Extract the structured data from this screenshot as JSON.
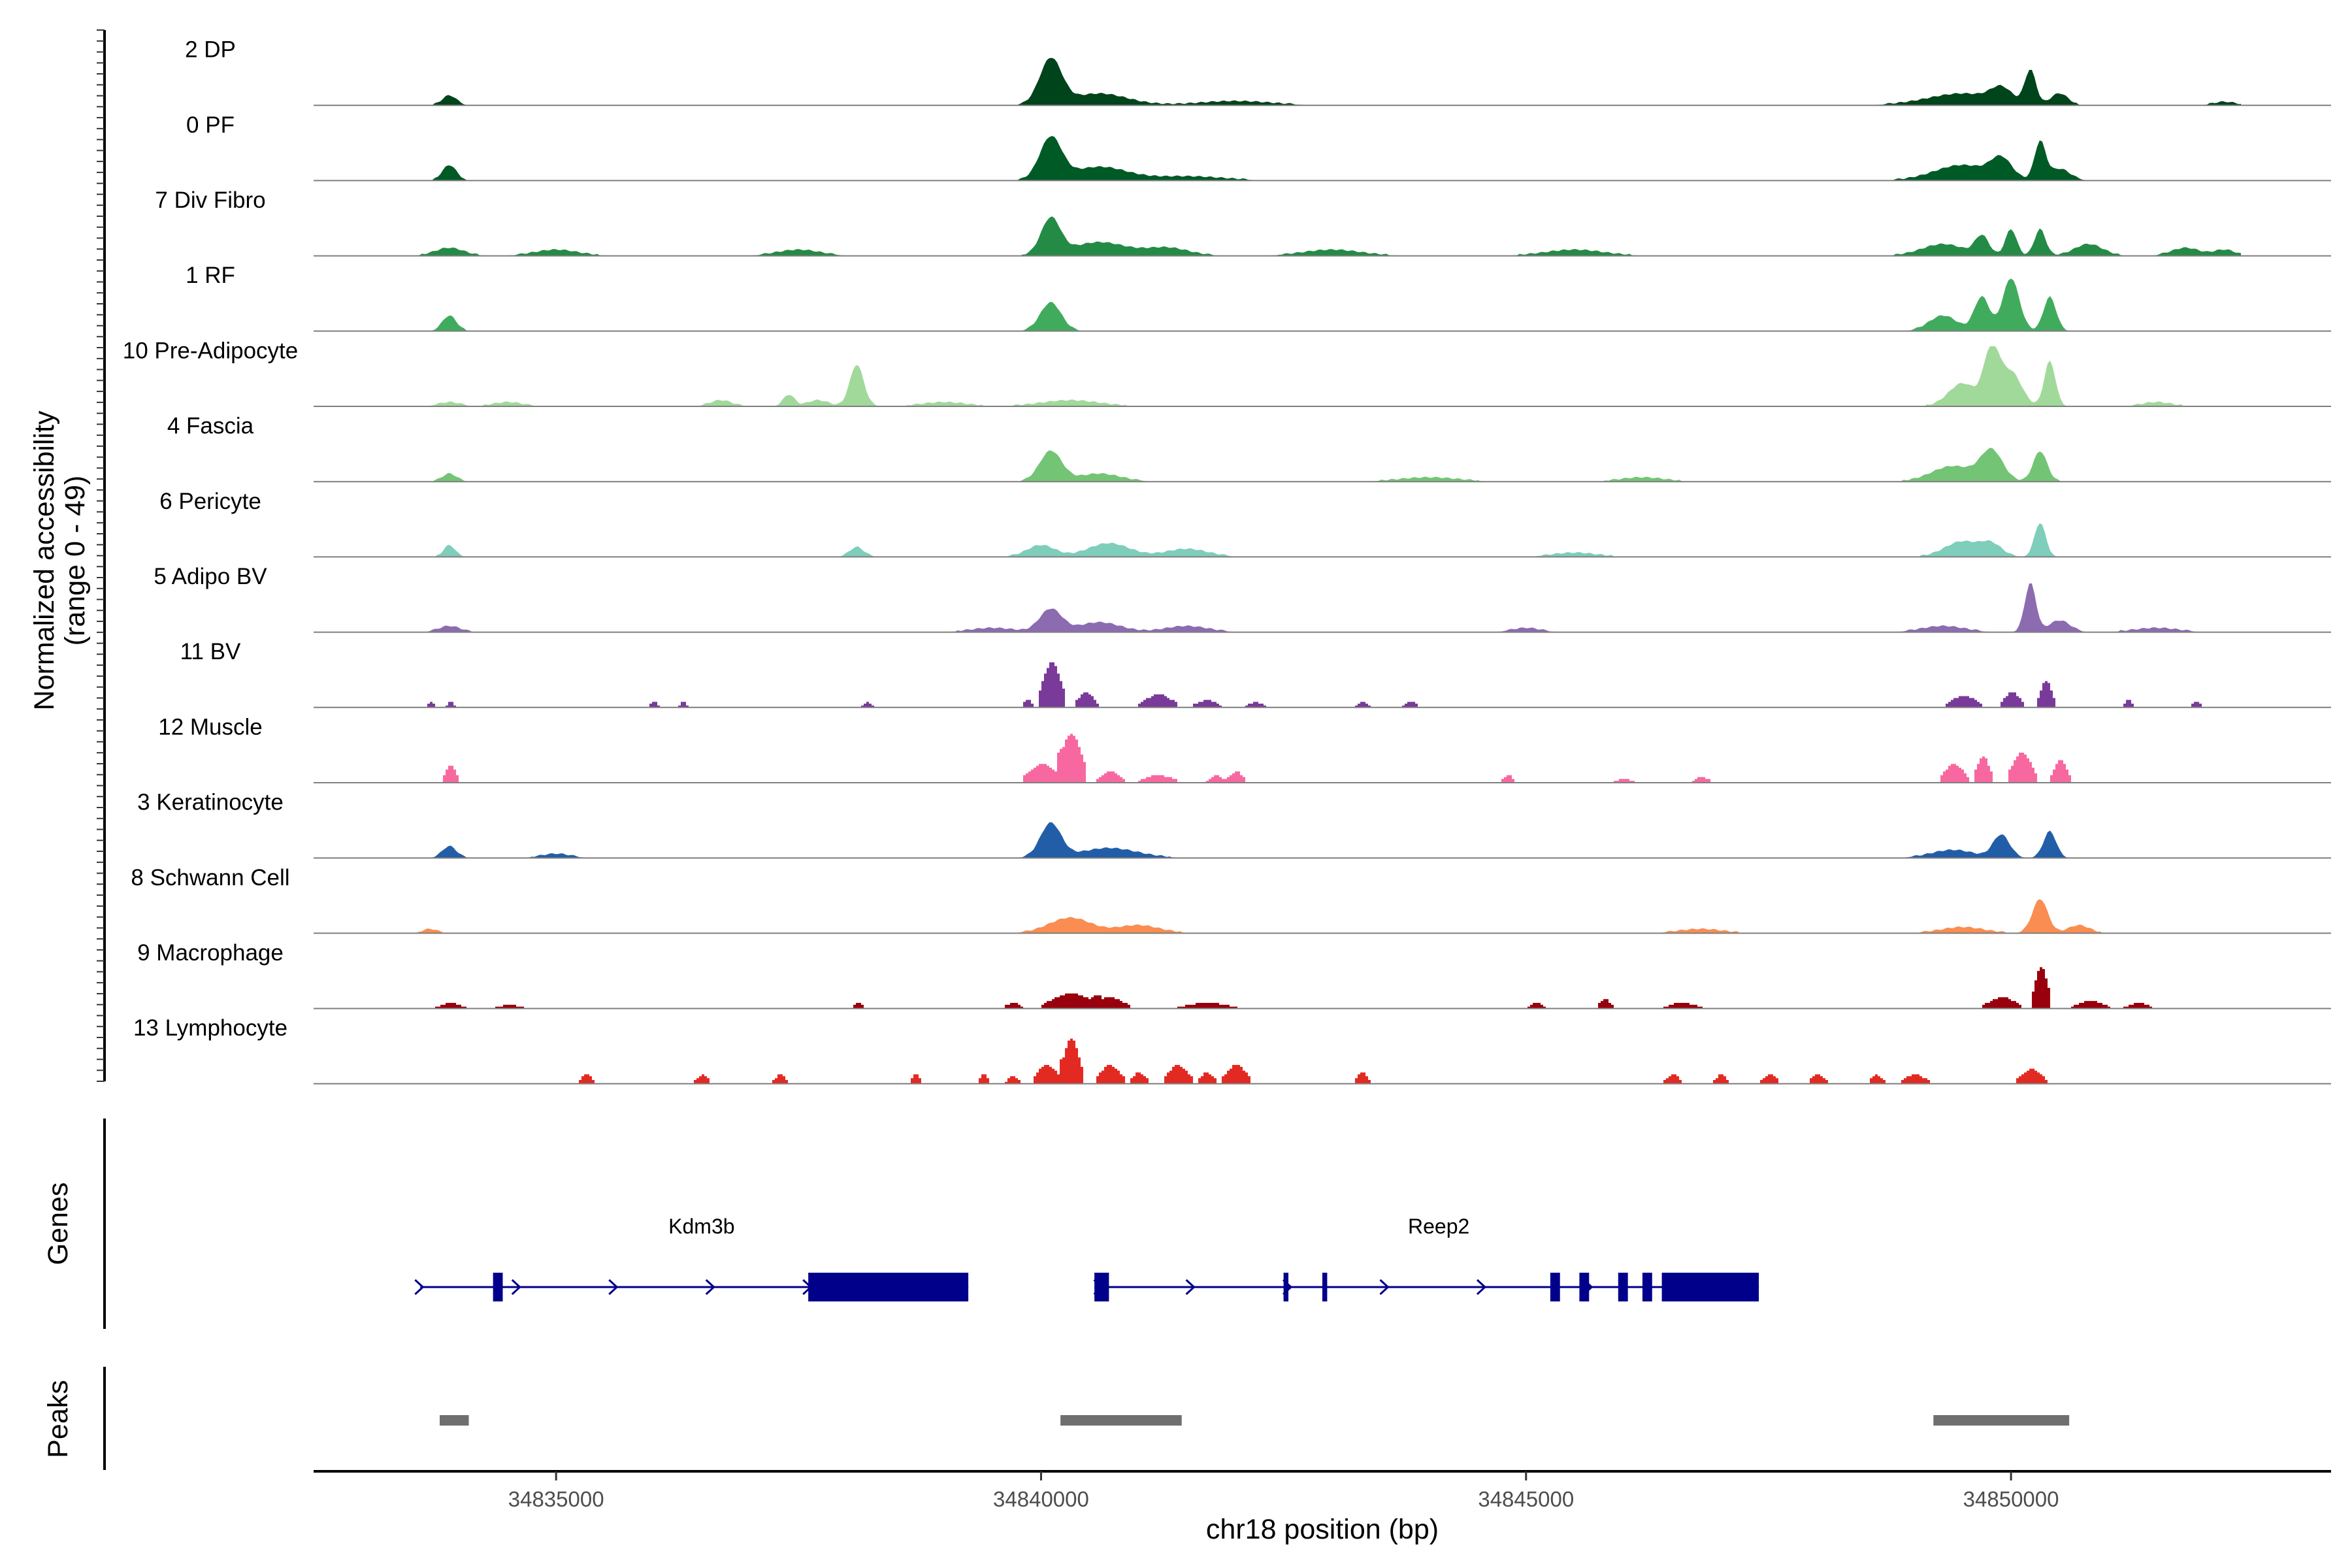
{
  "chart_data": {
    "type": "area",
    "region": {
      "chromosome": "chr18",
      "start": 34832500,
      "end": 34853300
    },
    "xlabel": "chr18 position (bp)",
    "xticks": [
      34835000,
      34840000,
      34845000,
      34850000
    ],
    "ylabel": "Normalized accessibility\n(range 0 - 49)",
    "ylim": [
      0,
      49
    ],
    "baseline_color": "#7f7f7f",
    "tracks_panel_label": "",
    "series": [
      {
        "name": "2 DP",
        "color": "#00441b",
        "style": "smooth",
        "peaks": [
          [
            34833900,
            2.5,
            100
          ],
          [
            34840100,
            12,
            160
          ],
          [
            34840600,
            3,
            400
          ],
          [
            34842000,
            1,
            500
          ],
          [
            34849500,
            3,
            500
          ],
          [
            34849900,
            3.5,
            150
          ],
          [
            34850200,
            9,
            80
          ],
          [
            34850500,
            3,
            120
          ],
          [
            34852200,
            0.8,
            150
          ]
        ]
      },
      {
        "name": "0 PF",
        "color": "#005a26",
        "style": "smooth",
        "peaks": [
          [
            34833900,
            4,
            100
          ],
          [
            34840100,
            11,
            160
          ],
          [
            34840600,
            3.5,
            400
          ],
          [
            34841500,
            1,
            500
          ],
          [
            34849500,
            4,
            400
          ],
          [
            34849900,
            5,
            150
          ],
          [
            34850300,
            10,
            80
          ],
          [
            34850500,
            3,
            150
          ]
        ]
      },
      {
        "name": "7 Div Fibro",
        "color": "#238b45",
        "style": "smooth",
        "peaks": [
          [
            34833900,
            2,
            200
          ],
          [
            34835000,
            1.5,
            300
          ],
          [
            34837500,
            1.5,
            300
          ],
          [
            34840100,
            9.5,
            140
          ],
          [
            34840600,
            3.5,
            400
          ],
          [
            34841300,
            2,
            300
          ],
          [
            34843000,
            1.5,
            400
          ],
          [
            34845500,
            1.5,
            400
          ],
          [
            34849300,
            3,
            300
          ],
          [
            34849700,
            5,
            100
          ],
          [
            34850000,
            7,
            80
          ],
          [
            34850300,
            7,
            80
          ],
          [
            34850800,
            3,
            200
          ],
          [
            34851800,
            2,
            200
          ],
          [
            34852200,
            1.5,
            150
          ]
        ]
      },
      {
        "name": "1 RF",
        "color": "#41ab5d",
        "style": "smooth",
        "peaks": [
          [
            34833900,
            4,
            100
          ],
          [
            34840100,
            7.5,
            150
          ],
          [
            34849300,
            4,
            200
          ],
          [
            34849700,
            9,
            110
          ],
          [
            34850000,
            14,
            120
          ],
          [
            34850400,
            9,
            90
          ]
        ]
      },
      {
        "name": "10 Pre-Adipocyte",
        "color": "#a1d99b",
        "style": "smooth",
        "peaks": [
          [
            34833900,
            1,
            150
          ],
          [
            34834500,
            1,
            200
          ],
          [
            34836700,
            1.5,
            150
          ],
          [
            34837400,
            3,
            80
          ],
          [
            34837700,
            1.5,
            150
          ],
          [
            34838100,
            11,
            100
          ],
          [
            34839000,
            1,
            300
          ],
          [
            34840300,
            1.5,
            400
          ],
          [
            34849500,
            6,
            200
          ],
          [
            34849800,
            15,
            110
          ],
          [
            34850000,
            9,
            150
          ],
          [
            34850400,
            12,
            80
          ],
          [
            34851500,
            1,
            200
          ]
        ]
      },
      {
        "name": "4 Fascia",
        "color": "#74c476",
        "style": "smooth",
        "peaks": [
          [
            34833900,
            2,
            100
          ],
          [
            34840100,
            8,
            160
          ],
          [
            34840600,
            2,
            300
          ],
          [
            34844000,
            1,
            400
          ],
          [
            34846200,
            1,
            300
          ],
          [
            34849400,
            4,
            300
          ],
          [
            34849800,
            8,
            160
          ],
          [
            34850300,
            8,
            100
          ]
        ]
      },
      {
        "name": "6 Pericyte",
        "color": "#7fcdbb",
        "style": "smooth",
        "peaks": [
          [
            34833900,
            3,
            80
          ],
          [
            34838100,
            2.5,
            100
          ],
          [
            34840000,
            3,
            200
          ],
          [
            34840700,
            3.5,
            300
          ],
          [
            34841500,
            2,
            300
          ],
          [
            34845500,
            1,
            300
          ],
          [
            34849500,
            4,
            250
          ],
          [
            34849800,
            3,
            150
          ],
          [
            34850300,
            9,
            80
          ]
        ]
      },
      {
        "name": "5 Adipo BV",
        "color": "#8c6bb1",
        "style": "smooth",
        "peaks": [
          [
            34833900,
            1.5,
            150
          ],
          [
            34839500,
            1,
            300
          ],
          [
            34840100,
            6,
            160
          ],
          [
            34840600,
            2.5,
            300
          ],
          [
            34841500,
            1.5,
            300
          ],
          [
            34845000,
            1,
            200
          ],
          [
            34849300,
            1.5,
            300
          ],
          [
            34850200,
            13,
            80
          ],
          [
            34850500,
            3,
            150
          ],
          [
            34851500,
            1,
            300
          ]
        ]
      },
      {
        "name": "11 BV",
        "color": "#7a3a9a",
        "style": "block",
        "peaks": [
          [
            34833700,
            1.5,
            50
          ],
          [
            34833900,
            1.5,
            50
          ],
          [
            34836000,
            1.5,
            50
          ],
          [
            34836300,
            1.5,
            50
          ],
          [
            34838200,
            1.5,
            60
          ],
          [
            34839850,
            2,
            60
          ],
          [
            34840100,
            12,
            140
          ],
          [
            34840450,
            4,
            120
          ],
          [
            34841200,
            3.5,
            200
          ],
          [
            34841700,
            2,
            150
          ],
          [
            34842200,
            1.5,
            100
          ],
          [
            34843300,
            1.5,
            80
          ],
          [
            34843800,
            1.5,
            80
          ],
          [
            34849500,
            3,
            200
          ],
          [
            34850000,
            4,
            120
          ],
          [
            34850350,
            7,
            90
          ],
          [
            34851200,
            2,
            60
          ],
          [
            34851900,
            1.5,
            60
          ]
        ]
      },
      {
        "name": "12 Muscle",
        "color": "#f768a1",
        "style": "block",
        "peaks": [
          [
            34833900,
            4.5,
            80
          ],
          [
            34840000,
            5,
            200
          ],
          [
            34840300,
            13,
            160
          ],
          [
            34840700,
            3,
            150
          ],
          [
            34841200,
            2,
            200
          ],
          [
            34841800,
            2,
            100
          ],
          [
            34842000,
            3,
            100
          ],
          [
            34846000,
            1,
            100
          ],
          [
            34844800,
            2,
            80
          ],
          [
            34846800,
            1.5,
            100
          ],
          [
            34849400,
            5,
            150
          ],
          [
            34849700,
            7,
            100
          ],
          [
            34850100,
            8,
            150
          ],
          [
            34850500,
            6,
            100
          ]
        ]
      },
      {
        "name": "3 Keratinocyte",
        "color": "#225ea8",
        "style": "smooth",
        "peaks": [
          [
            34833900,
            3,
            100
          ],
          [
            34835000,
            1,
            200
          ],
          [
            34840100,
            9,
            150
          ],
          [
            34840700,
            2.5,
            400
          ],
          [
            34849400,
            2,
            300
          ],
          [
            34849900,
            6,
            120
          ],
          [
            34850400,
            7,
            90
          ]
        ]
      },
      {
        "name": "8 Schwann Cell",
        "color": "#f98d52",
        "style": "smooth",
        "peaks": [
          [
            34833700,
            1,
            100
          ],
          [
            34840300,
            4,
            300
          ],
          [
            34841000,
            2,
            300
          ],
          [
            34846800,
            1,
            300
          ],
          [
            34849500,
            1.5,
            300
          ],
          [
            34850300,
            9,
            110
          ],
          [
            34850700,
            2,
            150
          ]
        ]
      },
      {
        "name": "9 Macrophage",
        "color": "#99000d",
        "style": "block",
        "peaks": [
          [
            34833900,
            1.5,
            150
          ],
          [
            34834500,
            1,
            150
          ],
          [
            34838100,
            1.5,
            60
          ],
          [
            34839700,
            1.5,
            100
          ],
          [
            34840300,
            4,
            300
          ],
          [
            34840700,
            3,
            200
          ],
          [
            34841700,
            1.5,
            300
          ],
          [
            34845100,
            1.5,
            100
          ],
          [
            34845800,
            2.5,
            80
          ],
          [
            34846600,
            1.5,
            200
          ],
          [
            34849900,
            3,
            200
          ],
          [
            34850300,
            11,
            100
          ],
          [
            34850800,
            2,
            200
          ],
          [
            34851300,
            1.5,
            150
          ]
        ]
      },
      {
        "name": "13 Lymphocyte",
        "color": "#e32a22",
        "style": "block",
        "peaks": [
          [
            34835300,
            2.5,
            80
          ],
          [
            34836500,
            2.5,
            80
          ],
          [
            34837300,
            2.5,
            80
          ],
          [
            34838700,
            2.5,
            60
          ],
          [
            34839400,
            2.5,
            60
          ],
          [
            34839700,
            2,
            80
          ],
          [
            34840050,
            5,
            150
          ],
          [
            34840300,
            12,
            120
          ],
          [
            34840700,
            5,
            150
          ],
          [
            34841000,
            3,
            100
          ],
          [
            34841400,
            5,
            150
          ],
          [
            34841700,
            3,
            100
          ],
          [
            34842000,
            5,
            150
          ],
          [
            34843300,
            3,
            80
          ],
          [
            34846500,
            2.5,
            100
          ],
          [
            34847000,
            2.5,
            80
          ],
          [
            34847500,
            2.5,
            100
          ],
          [
            34848000,
            2.5,
            100
          ],
          [
            34848600,
            2.5,
            80
          ],
          [
            34849000,
            2.5,
            150
          ],
          [
            34850200,
            4,
            150
          ]
        ]
      }
    ],
    "genes": {
      "label": "Genes",
      "color": "#00008b",
      "items": [
        {
          "name": "Kdm3b",
          "start": 34833600,
          "end": 34839250,
          "strand": "+",
          "exons": [
            [
              34834350,
              34834450
            ],
            [
              34837600,
              34839250
            ]
          ],
          "arrows": [
            34833600,
            34834600,
            34835600,
            34836600,
            34837600
          ]
        },
        {
          "name": "Reep2",
          "start": 34840550,
          "end": 34847400,
          "strand": "+",
          "exons": [
            [
              34840550,
              34840700
            ],
            [
              34842500,
              34842550
            ],
            [
              34842900,
              34842950
            ],
            [
              34845250,
              34845350
            ],
            [
              34845550,
              34845650
            ],
            [
              34845950,
              34846050
            ],
            [
              34846200,
              34846300
            ],
            [
              34846400,
              34847400
            ]
          ],
          "arrows": [
            34840600,
            34841550,
            34842550,
            34843550,
            34844550,
            34845650
          ]
        }
      ]
    },
    "peaks_track": {
      "label": "Peaks",
      "color": "#6f6f6f",
      "items": [
        [
          34833800,
          34834100
        ],
        [
          34840200,
          34841450
        ],
        [
          34849200,
          34850600
        ]
      ]
    }
  }
}
